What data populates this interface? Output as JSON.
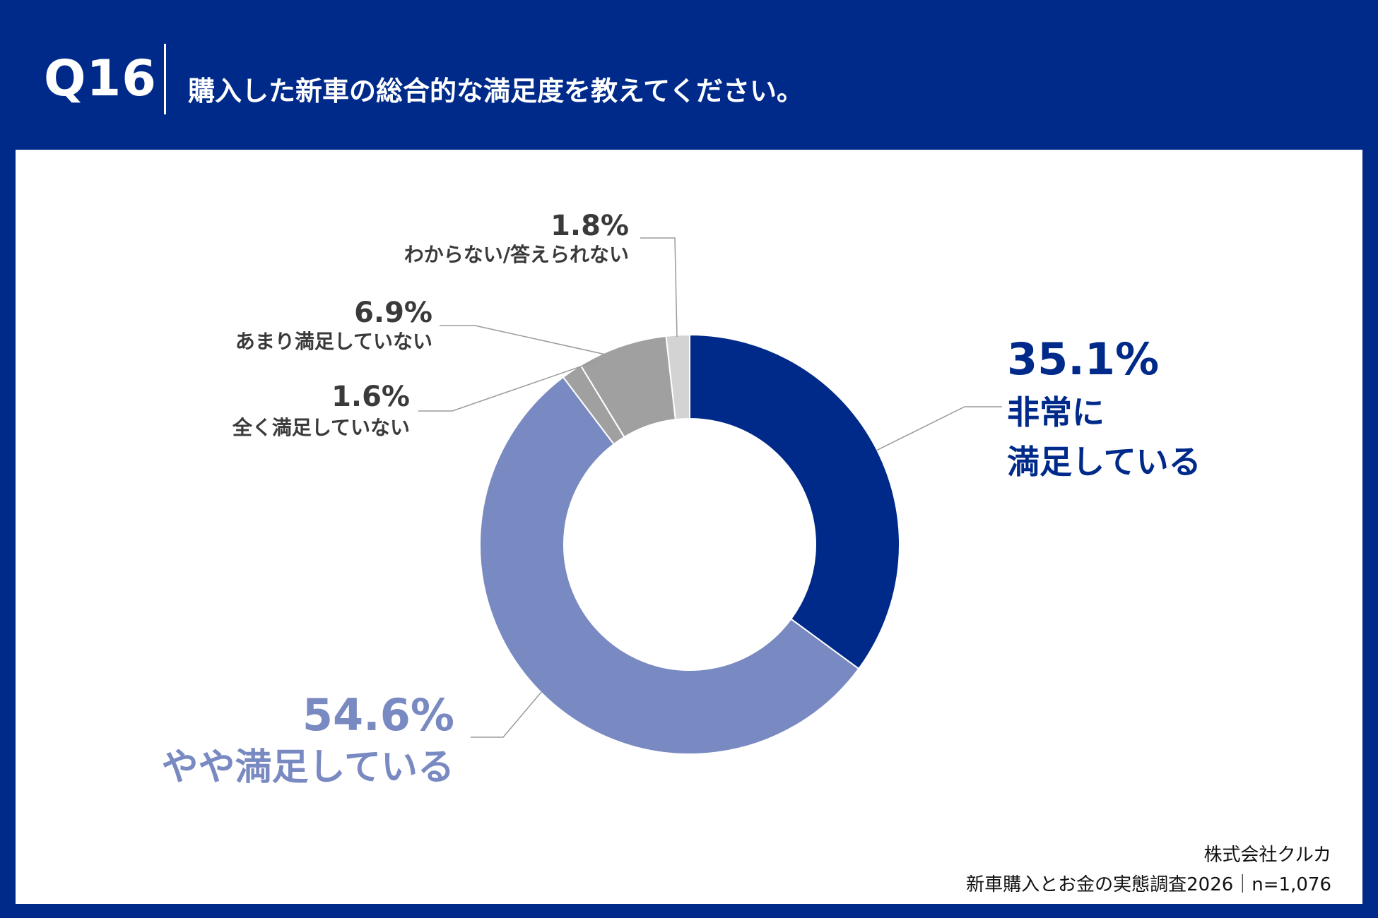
{
  "header": {
    "question_number": "Q16",
    "question": "購入した新車の総合的な満足度を教えてください。"
  },
  "chart_data": {
    "type": "pie",
    "donut": true,
    "start_angle_deg": 0,
    "direction": "clockwise",
    "slices": [
      {
        "label_lines": [
          "非常に",
          "満足している"
        ],
        "value": 35.1,
        "pct_label": "35.1%",
        "color": "#002a8a",
        "label_color": "#002a8a"
      },
      {
        "label_lines": [
          "やや満足している"
        ],
        "value": 54.6,
        "pct_label": "54.6%",
        "color": "#7989c1",
        "label_color": "#7989c1"
      },
      {
        "label_lines": [
          "全く満足していない"
        ],
        "value": 1.6,
        "pct_label": "1.6%",
        "color": "#a0a0a0",
        "label_color": "#3a3a3a"
      },
      {
        "label_lines": [
          "あまり満足していない"
        ],
        "value": 6.9,
        "pct_label": "6.9%",
        "color": "#a0a0a0",
        "label_color": "#3a3a3a"
      },
      {
        "label_lines": [
          "わからない/答えられない"
        ],
        "value": 1.8,
        "pct_label": "1.8%",
        "color": "#d3d3d3",
        "label_color": "#3a3a3a"
      }
    ]
  },
  "source": {
    "company": "株式会社クルカ",
    "survey": "新車購入とお金の実態調査2026｜n=1,076"
  }
}
